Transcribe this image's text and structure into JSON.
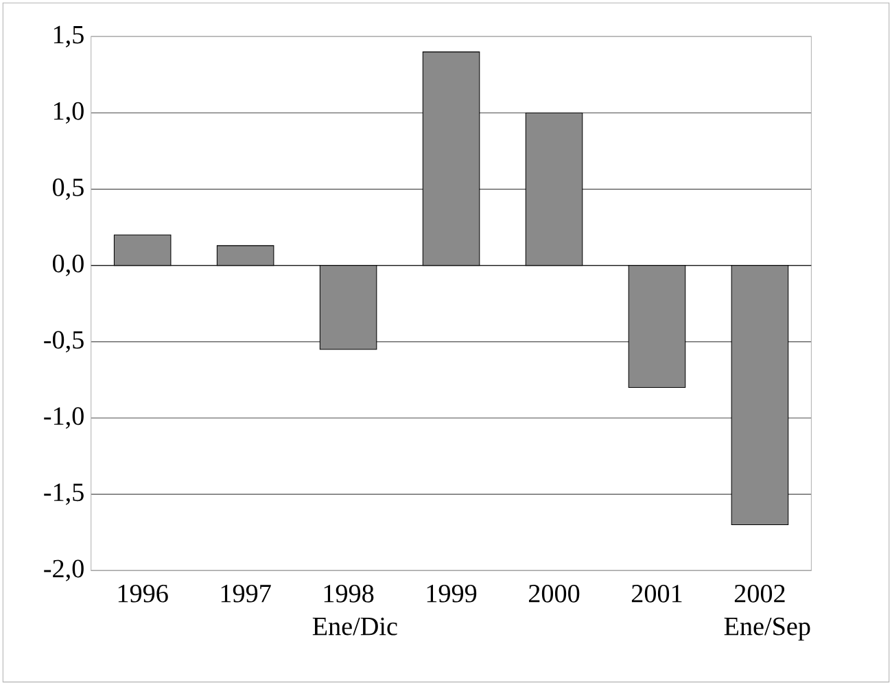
{
  "chart_data": {
    "type": "bar",
    "categories": [
      "1996",
      "1997",
      "1998 Ene/Dic",
      "1999",
      "2000",
      "2001",
      "2002 Ene/Sep"
    ],
    "values": [
      0.2,
      0.13,
      -0.55,
      1.4,
      1.0,
      -0.8,
      -1.7
    ],
    "color": "#8a8a8a",
    "ylim": [
      -2.0,
      1.5
    ],
    "yticks": [
      {
        "value": -2.0,
        "label": "-2,0"
      },
      {
        "value": -1.5,
        "label": "-1,5"
      },
      {
        "value": -1.0,
        "label": "-1,0"
      },
      {
        "value": -0.5,
        "label": "-0,5"
      },
      {
        "value": 0.0,
        "label": "0,0"
      },
      {
        "value": 0.5,
        "label": "0,5"
      },
      {
        "value": 1.0,
        "label": "1,0"
      },
      {
        "value": 1.5,
        "label": "1,5"
      }
    ],
    "grid": "y"
  }
}
